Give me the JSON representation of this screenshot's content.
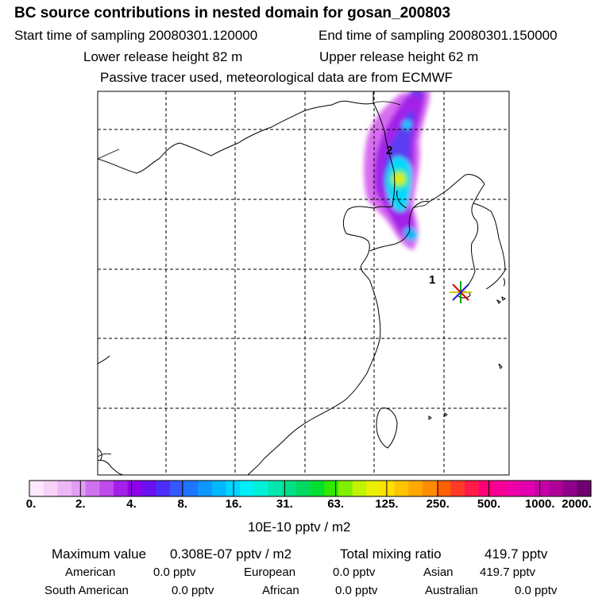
{
  "header": {
    "title": "BC  source contributions in nested domain for gosan_200803",
    "start_time": "Start time of sampling 20080301.120000",
    "end_time": "End time of sampling 20080301.150000",
    "lower_height": "Lower release height   82 m",
    "upper_height": "Upper release height   62 m",
    "note": "Passive tracer used, meteorological data are from ECMWF"
  },
  "map": {
    "labels": {
      "one": "1",
      "two": "2"
    },
    "receptor_icon": "star-marker-icon"
  },
  "colorbar": {
    "colors": [
      "#fde8fd",
      "#f7d3fa",
      "#edb7f6",
      "#e39ef4",
      "#cf72ee",
      "#c04aeb",
      "#a420e8",
      "#8f00e8",
      "#6a10f0",
      "#4c2cf8",
      "#3658ff",
      "#1e76ff",
      "#0e98ff",
      "#00b8ff",
      "#00d4ff",
      "#00eef8",
      "#00f0d8",
      "#00e8b0",
      "#00e088",
      "#00d860",
      "#00e030",
      "#30e800",
      "#80f000",
      "#c0f400",
      "#e8f000",
      "#ffe000",
      "#ffc400",
      "#ffa800",
      "#ff8c00",
      "#ff6000",
      "#ff3a28",
      "#ff1a48",
      "#ff0078",
      "#f80098",
      "#ee00a8",
      "#e000b0",
      "#c800a8",
      "#b0009a",
      "#900088",
      "#700070"
    ],
    "ticks": [
      "0.",
      "2.",
      "4.",
      "8.",
      "16.",
      "31.",
      "63.",
      "125.",
      "250.",
      "500.",
      "1000.",
      "2000."
    ],
    "units": "10E-10 pptv / m2"
  },
  "stats": {
    "max_label": "Maximum value",
    "max_value": "0.308E-07 pptv / m2",
    "total_label": "Total mixing ratio",
    "total_value": "419.7 pptv",
    "american_label": "American",
    "american_value": "0.0 pptv",
    "european_label": "European",
    "european_value": "0.0 pptv",
    "asian_label": "Asian",
    "asian_value": "419.7 pptv",
    "south_american_label": "South American",
    "south_american_value": "0.0 pptv",
    "african_label": "African",
    "african_value": "0.0 pptv",
    "australian_label": "Australian",
    "australian_value": "0.0 pptv"
  }
}
